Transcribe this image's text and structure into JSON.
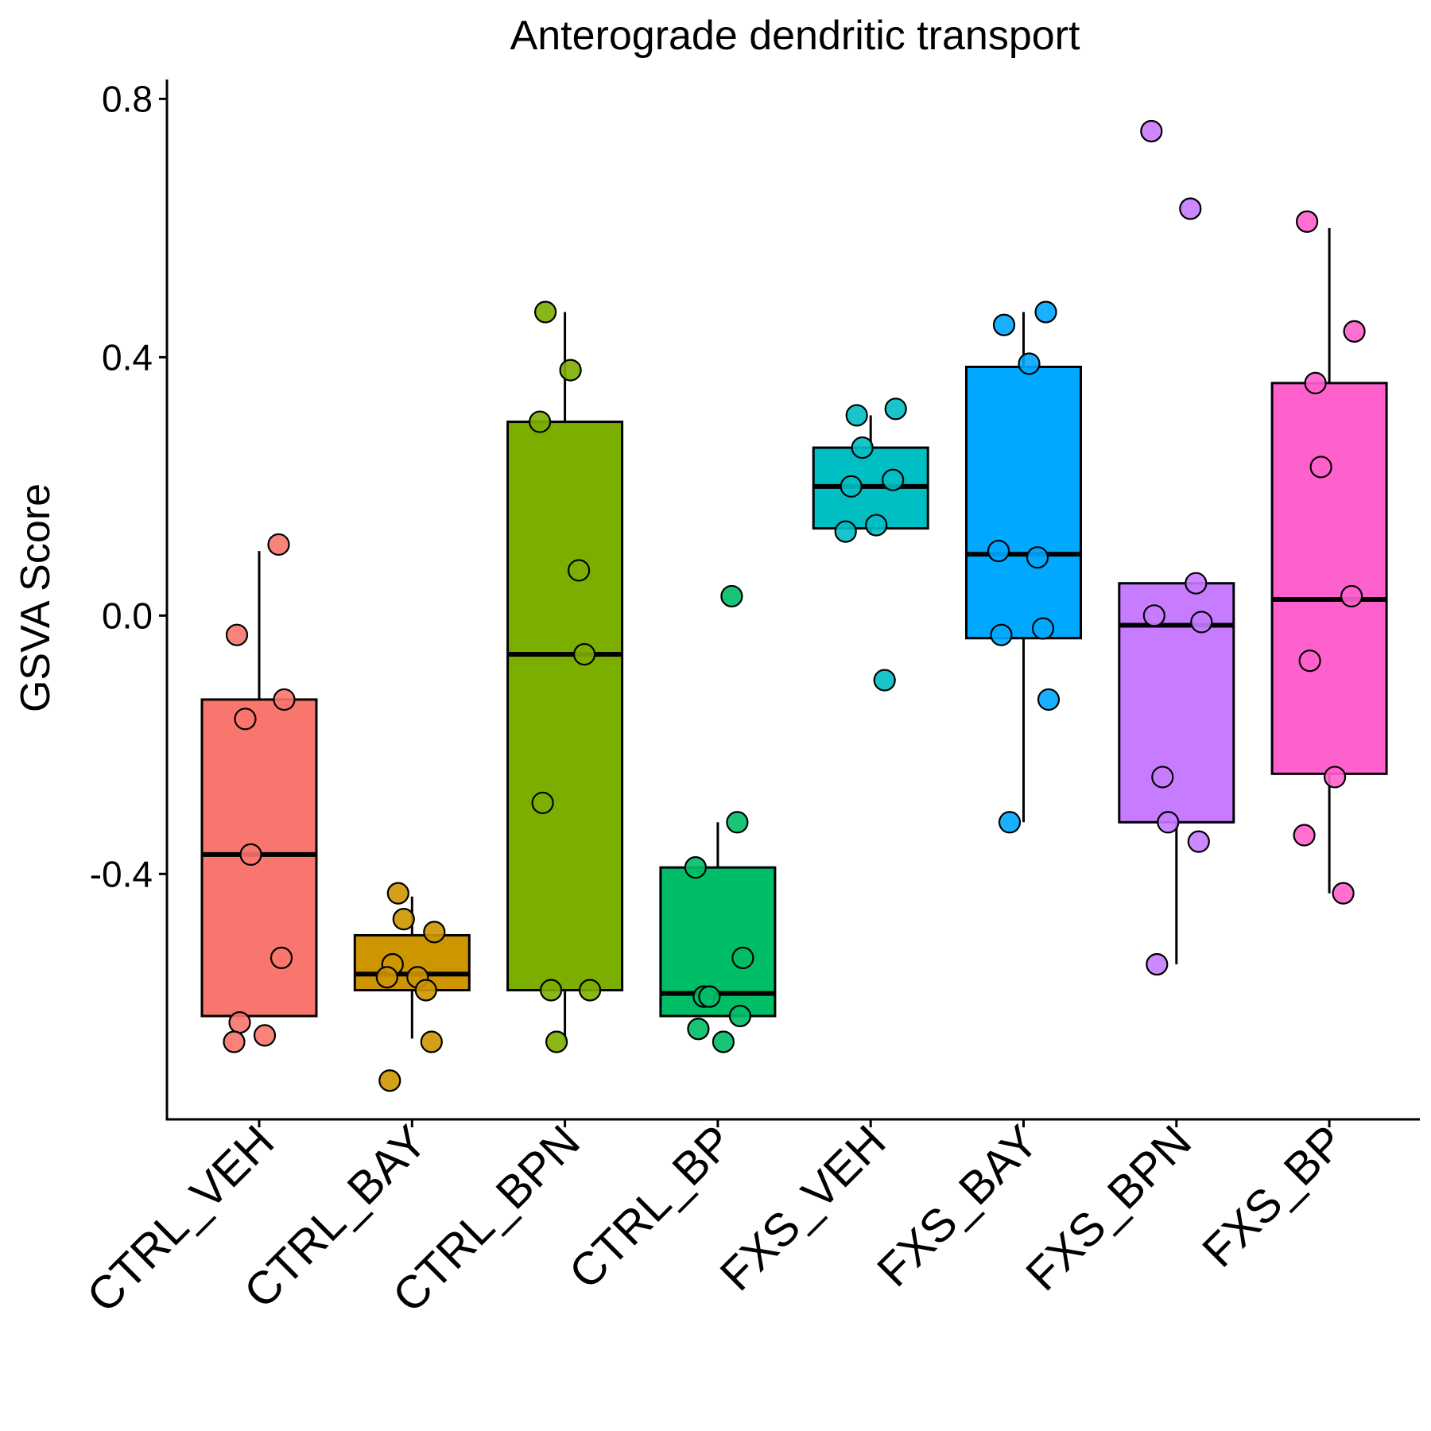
{
  "chart_data": {
    "type": "box",
    "title": "Anterograde dendritic transport",
    "xlabel": "",
    "ylabel": "GSVA Score",
    "ylim": [
      -0.78,
      0.83
    ],
    "yticks": [
      0.8,
      0.4,
      0.0,
      -0.4
    ],
    "ytick_labels": [
      "0.8",
      "0.4",
      "0.0",
      "-0.4"
    ],
    "grid": false,
    "legend": "none",
    "categories": [
      "CTRL_VEH",
      "CTRL_BAY",
      "CTRL_BPN",
      "CTRL_BP",
      "FXS_VEH",
      "FXS_BAY",
      "FXS_BPN",
      "FXS_BP"
    ],
    "colors": [
      "#F8766D",
      "#CD9600",
      "#7CAE00",
      "#00BE67",
      "#00BFC4",
      "#00A9FF",
      "#C77CFF",
      "#FF61CC"
    ],
    "boxes": [
      {
        "q1": -0.62,
        "median": -0.37,
        "q3": -0.13,
        "whisker_low": -0.62,
        "whisker_high": 0.1,
        "points": [
          0.11,
          -0.03,
          -0.13,
          -0.16,
          -0.37,
          -0.53,
          -0.63,
          -0.65,
          -0.66
        ]
      },
      {
        "q1": -0.58,
        "median": -0.555,
        "q3": -0.495,
        "whisker_low": -0.655,
        "whisker_high": -0.435,
        "points": [
          -0.43,
          -0.47,
          -0.49,
          -0.54,
          -0.56,
          -0.56,
          -0.58,
          -0.66,
          -0.72
        ]
      },
      {
        "q1": -0.58,
        "median": -0.06,
        "q3": 0.3,
        "whisker_low": -0.66,
        "whisker_high": 0.47,
        "points": [
          0.47,
          0.38,
          0.3,
          0.07,
          -0.06,
          -0.29,
          -0.58,
          -0.58,
          -0.66
        ]
      },
      {
        "q1": -0.62,
        "median": -0.585,
        "q3": -0.39,
        "whisker_low": -0.62,
        "whisker_high": -0.32,
        "points": [
          0.03,
          -0.32,
          -0.39,
          -0.53,
          -0.59,
          -0.59,
          -0.62,
          -0.64,
          -0.66
        ]
      },
      {
        "q1": 0.135,
        "median": 0.2,
        "q3": 0.26,
        "whisker_low": 0.125,
        "whisker_high": 0.31,
        "points": [
          0.32,
          0.31,
          0.26,
          0.21,
          0.2,
          0.14,
          0.13,
          -0.1
        ]
      },
      {
        "q1": -0.035,
        "median": 0.095,
        "q3": 0.385,
        "whisker_low": -0.32,
        "whisker_high": 0.47,
        "points": [
          0.47,
          0.45,
          0.39,
          0.1,
          0.09,
          -0.02,
          -0.03,
          -0.13,
          -0.32
        ]
      },
      {
        "q1": -0.32,
        "median": -0.015,
        "q3": 0.05,
        "whisker_low": -0.54,
        "whisker_high": 0.05,
        "points": [
          0.75,
          0.63,
          0.05,
          0.0,
          -0.01,
          -0.25,
          -0.32,
          -0.35,
          -0.54
        ]
      },
      {
        "q1": -0.245,
        "median": 0.025,
        "q3": 0.36,
        "whisker_low": -0.43,
        "whisker_high": 0.6,
        "points": [
          0.61,
          0.44,
          0.36,
          0.23,
          0.03,
          -0.07,
          -0.25,
          -0.34,
          -0.43
        ]
      }
    ]
  }
}
